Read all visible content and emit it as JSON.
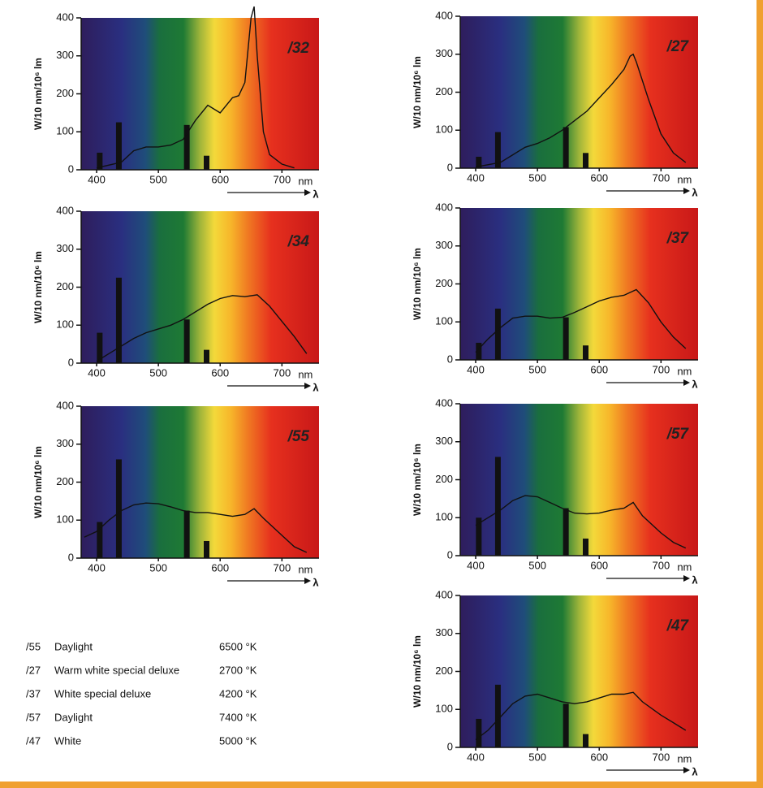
{
  "chart_data": [
    {
      "type": "spectrum",
      "label": "/32",
      "ylabel": "W/10 nm/10⁶ lm",
      "x_unit": "nm",
      "x_symbol": "λ",
      "xlim": [
        375,
        760
      ],
      "ylim": [
        0,
        400
      ],
      "xticks": [
        400,
        500,
        600,
        700
      ],
      "yticks": [
        0,
        100,
        200,
        300,
        400
      ],
      "bars": {
        "x": [
          405,
          436,
          546,
          578
        ],
        "values": [
          45,
          125,
          118,
          37
        ]
      },
      "curve": {
        "x": [
          400,
          440,
          460,
          480,
          500,
          520,
          540,
          560,
          580,
          600,
          620,
          630,
          640,
          650,
          655,
          660,
          670,
          680,
          700,
          720
        ],
        "values": [
          5,
          20,
          50,
          60,
          60,
          65,
          80,
          130,
          170,
          150,
          190,
          195,
          230,
          400,
          430,
          300,
          100,
          40,
          15,
          5
        ]
      }
    },
    {
      "type": "spectrum",
      "label": "/27",
      "ylabel": "W/10 nm/10⁶ lm",
      "x_unit": "nm",
      "x_symbol": "λ",
      "xlim": [
        375,
        760
      ],
      "ylim": [
        0,
        400
      ],
      "xticks": [
        400,
        500,
        600,
        700
      ],
      "yticks": [
        0,
        100,
        200,
        300,
        400
      ],
      "bars": {
        "x": [
          405,
          436,
          546,
          578
        ],
        "values": [
          30,
          95,
          108,
          40
        ]
      },
      "curve": {
        "x": [
          400,
          440,
          460,
          480,
          500,
          520,
          540,
          560,
          580,
          600,
          620,
          640,
          650,
          655,
          660,
          680,
          700,
          720,
          740
        ],
        "values": [
          3,
          15,
          35,
          55,
          65,
          80,
          100,
          125,
          150,
          185,
          220,
          260,
          295,
          300,
          280,
          180,
          90,
          40,
          15
        ]
      }
    },
    {
      "type": "spectrum",
      "label": "/34",
      "ylabel": "W/10 nm/10⁶ lm",
      "x_unit": "nm",
      "x_symbol": "λ",
      "xlim": [
        375,
        760
      ],
      "ylim": [
        0,
        400
      ],
      "xticks": [
        400,
        500,
        600,
        700
      ],
      "yticks": [
        0,
        100,
        200,
        300,
        400
      ],
      "bars": {
        "x": [
          405,
          436,
          546,
          578
        ],
        "values": [
          80,
          225,
          115,
          35
        ]
      },
      "curve": {
        "x": [
          400,
          420,
          440,
          460,
          480,
          500,
          520,
          540,
          560,
          580,
          600,
          620,
          640,
          660,
          680,
          700,
          720,
          740
        ],
        "values": [
          5,
          25,
          45,
          65,
          80,
          90,
          100,
          115,
          135,
          155,
          170,
          178,
          175,
          180,
          150,
          110,
          70,
          25
        ]
      }
    },
    {
      "type": "spectrum",
      "label": "/37",
      "ylabel": "W/10 nm/10⁶ lm",
      "x_unit": "nm",
      "x_symbol": "λ",
      "xlim": [
        375,
        760
      ],
      "ylim": [
        0,
        400
      ],
      "xticks": [
        400,
        500,
        600,
        700
      ],
      "yticks": [
        0,
        100,
        200,
        300,
        400
      ],
      "bars": {
        "x": [
          405,
          436,
          546,
          578
        ],
        "values": [
          45,
          135,
          112,
          38
        ]
      },
      "curve": {
        "x": [
          400,
          420,
          440,
          460,
          480,
          500,
          520,
          540,
          560,
          580,
          600,
          620,
          640,
          660,
          680,
          700,
          720,
          740
        ],
        "values": [
          20,
          55,
          85,
          110,
          115,
          115,
          110,
          112,
          125,
          140,
          155,
          165,
          170,
          185,
          150,
          100,
          60,
          30
        ]
      }
    },
    {
      "type": "spectrum",
      "label": "/55",
      "ylabel": "W/10 nm/10⁶ lm",
      "x_unit": "nm",
      "x_symbol": "λ",
      "xlim": [
        375,
        760
      ],
      "ylim": [
        0,
        400
      ],
      "xticks": [
        400,
        500,
        600,
        700
      ],
      "yticks": [
        0,
        100,
        200,
        300,
        400
      ],
      "bars": {
        "x": [
          405,
          436,
          546,
          578
        ],
        "values": [
          95,
          260,
          125,
          45
        ]
      },
      "curve": {
        "x": [
          380,
          400,
          420,
          440,
          460,
          480,
          500,
          520,
          540,
          560,
          580,
          600,
          620,
          640,
          655,
          670,
          700,
          720,
          740
        ],
        "values": [
          55,
          70,
          100,
          125,
          140,
          145,
          143,
          135,
          125,
          120,
          120,
          115,
          110,
          115,
          130,
          105,
          60,
          30,
          15
        ]
      }
    },
    {
      "type": "spectrum",
      "label": "/57",
      "ylabel": "W/10 nm/10⁶ lm",
      "x_unit": "nm",
      "x_symbol": "λ",
      "xlim": [
        375,
        760
      ],
      "ylim": [
        0,
        400
      ],
      "xticks": [
        400,
        500,
        600,
        700
      ],
      "yticks": [
        0,
        100,
        200,
        300,
        400
      ],
      "bars": {
        "x": [
          405,
          436,
          546,
          578
        ],
        "values": [
          100,
          260,
          125,
          45
        ]
      },
      "curve": {
        "x": [
          400,
          420,
          440,
          460,
          480,
          500,
          520,
          540,
          560,
          580,
          600,
          620,
          640,
          655,
          670,
          700,
          720,
          740
        ],
        "values": [
          80,
          100,
          120,
          145,
          158,
          155,
          140,
          125,
          112,
          110,
          112,
          120,
          125,
          140,
          105,
          60,
          35,
          20
        ]
      }
    },
    {
      "type": "spectrum",
      "label": "/47",
      "ylabel": "W/10 nm/10⁶ lm",
      "x_unit": "nm",
      "x_symbol": "λ",
      "xlim": [
        375,
        760
      ],
      "ylim": [
        0,
        400
      ],
      "xticks": [
        400,
        500,
        600,
        700
      ],
      "yticks": [
        0,
        100,
        200,
        300,
        400
      ],
      "bars": {
        "x": [
          405,
          436,
          546,
          578
        ],
        "values": [
          75,
          165,
          115,
          35
        ]
      },
      "curve": {
        "x": [
          400,
          420,
          440,
          460,
          480,
          500,
          520,
          540,
          560,
          580,
          600,
          620,
          640,
          655,
          670,
          700,
          720,
          740
        ],
        "values": [
          20,
          45,
          80,
          115,
          135,
          140,
          130,
          120,
          115,
          120,
          130,
          140,
          140,
          145,
          120,
          85,
          65,
          45
        ]
      }
    }
  ],
  "legend_table": {
    "rows": [
      [
        "/55",
        "Daylight",
        "6500 °K"
      ],
      [
        "/27",
        "Warm white special deluxe",
        "2700 °K"
      ],
      [
        "/37",
        "White special deluxe",
        "4200 °K"
      ],
      [
        "/57",
        "Daylight",
        "7400 °K"
      ],
      [
        "/47",
        "White",
        "5000 °K"
      ]
    ]
  }
}
